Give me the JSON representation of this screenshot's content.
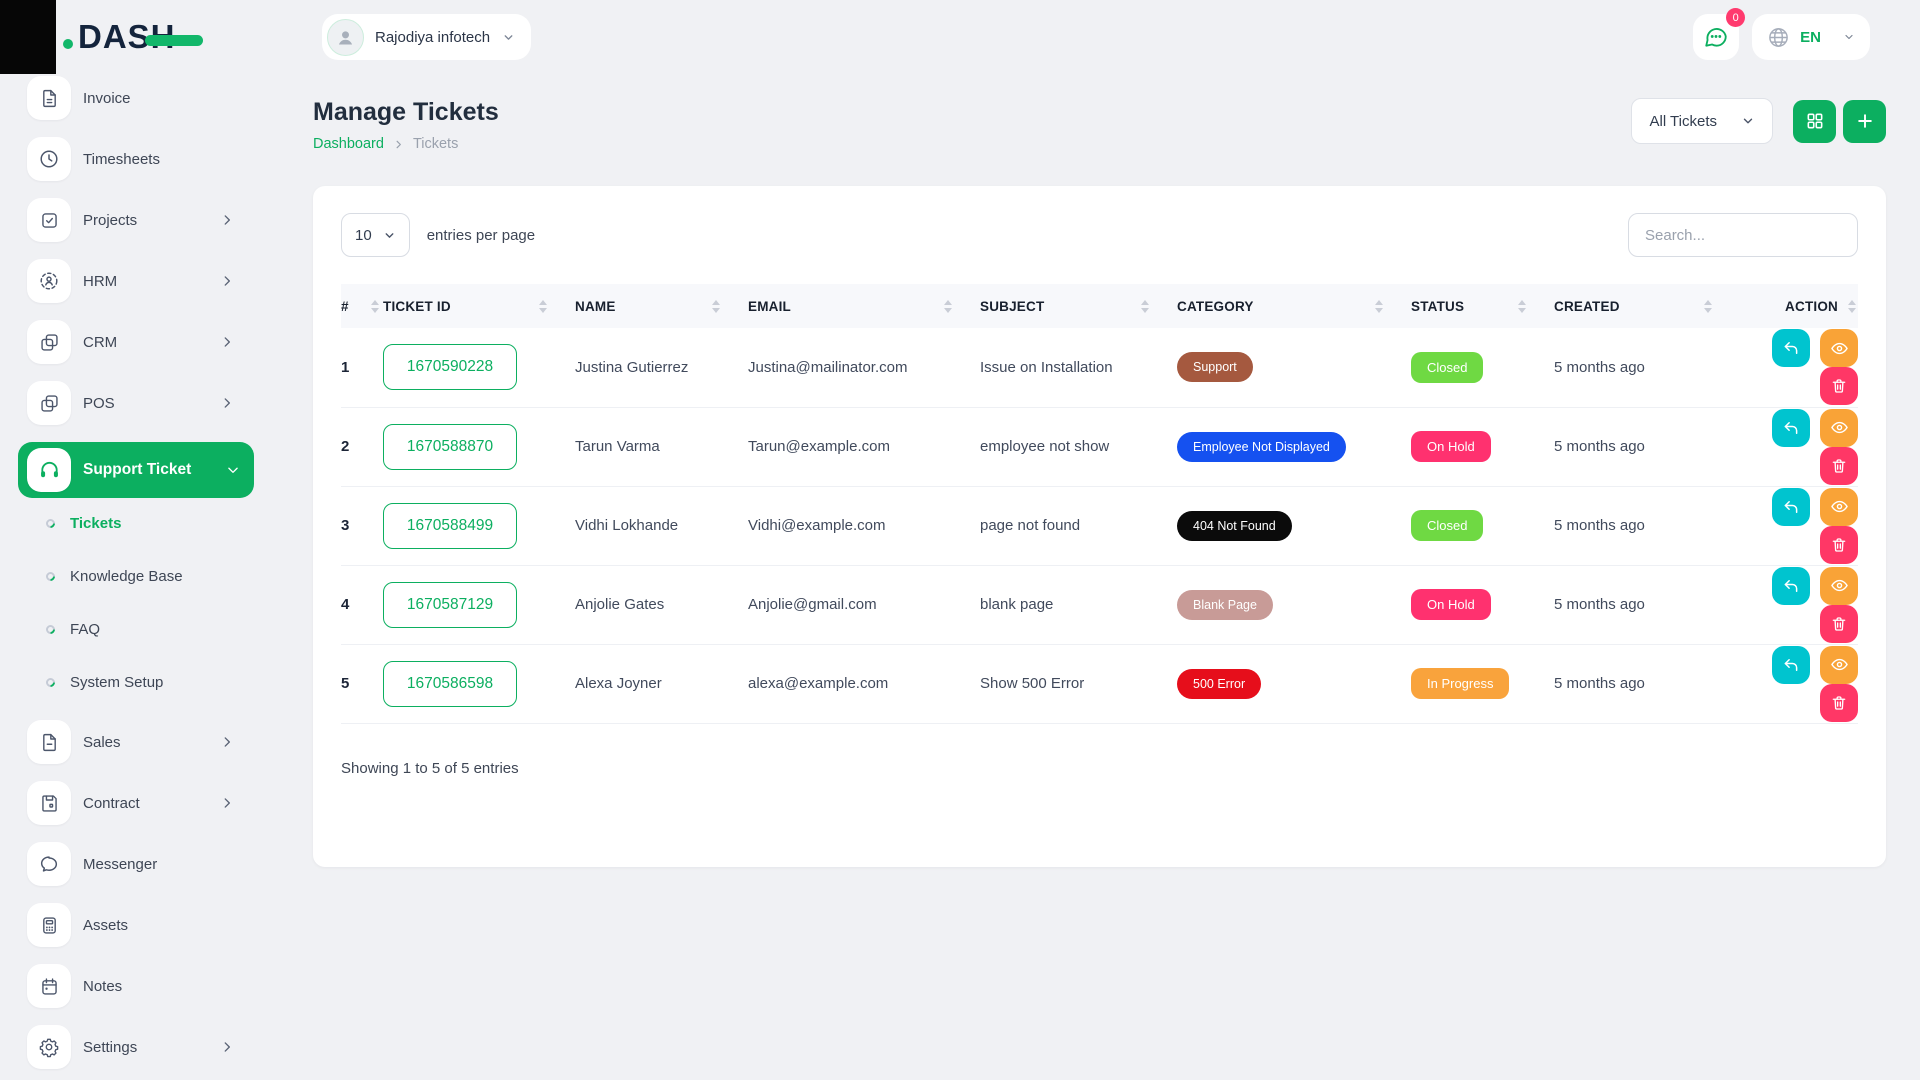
{
  "brand": {
    "logo_text": "DASH"
  },
  "topbar": {
    "company_name": "Rajodiya infotech",
    "messages_badge": "0",
    "language_code": "EN"
  },
  "page": {
    "title": "Manage Tickets",
    "breadcrumb_home": "Dashboard",
    "breadcrumb_current": "Tickets",
    "filter_button_label": "All Tickets"
  },
  "sidebar": {
    "items": [
      {
        "label": "Invoice",
        "icon": "invoice-icon",
        "expandable": false
      },
      {
        "label": "Timesheets",
        "icon": "timesheets-icon",
        "expandable": false
      },
      {
        "label": "Projects",
        "icon": "projects-icon",
        "expandable": true
      },
      {
        "label": "HRM",
        "icon": "hrm-icon",
        "expandable": true
      },
      {
        "label": "CRM",
        "icon": "crm-icon",
        "expandable": true
      },
      {
        "label": "POS",
        "icon": "pos-icon",
        "expandable": true
      },
      {
        "label": "Support Ticket",
        "icon": "support-ticket-icon",
        "expandable": true,
        "active": true,
        "expanded": true,
        "children": [
          {
            "label": "Tickets",
            "active": true
          },
          {
            "label": "Knowledge Base",
            "active": false
          },
          {
            "label": "FAQ",
            "active": false
          },
          {
            "label": "System Setup",
            "active": false
          }
        ]
      },
      {
        "label": "Sales",
        "icon": "sales-icon",
        "expandable": true
      },
      {
        "label": "Contract",
        "icon": "contract-icon",
        "expandable": true
      },
      {
        "label": "Messenger",
        "icon": "messenger-icon",
        "expandable": false
      },
      {
        "label": "Assets",
        "icon": "assets-icon",
        "expandable": false
      },
      {
        "label": "Notes",
        "icon": "notes-icon",
        "expandable": false
      },
      {
        "label": "Settings",
        "icon": "settings-icon",
        "expandable": true
      }
    ]
  },
  "table": {
    "entries_value": "10",
    "entries_label": "entries per page",
    "search_placeholder": "Search...",
    "columns": [
      "#",
      "TICKET ID",
      "NAME",
      "EMAIL",
      "SUBJECT",
      "CATEGORY",
      "STATUS",
      "CREATED",
      "ACTION"
    ],
    "rows": [
      {
        "index": "1",
        "ticket_id": "1670590228",
        "name": "Justina Gutierrez",
        "email": "Justina@mailinator.com",
        "subject": "Issue on Installation",
        "category": {
          "label": "Support",
          "color": "#a5593f"
        },
        "status": {
          "label": "Closed",
          "color": "#6fd943"
        },
        "created": "5 months ago"
      },
      {
        "index": "2",
        "ticket_id": "1670588870",
        "name": "Tarun Varma",
        "email": "Tarun@example.com",
        "subject": "employee not show",
        "category": {
          "label": "Employee Not Displayed",
          "color": "#1551f0"
        },
        "status": {
          "label": "On Hold",
          "color": "#ff316f"
        },
        "created": "5 months ago"
      },
      {
        "index": "3",
        "ticket_id": "1670588499",
        "name": "Vidhi Lokhande",
        "email": "Vidhi@example.com",
        "subject": "page not found",
        "category": {
          "label": "404 Not Found",
          "color": "#0b0b0b"
        },
        "status": {
          "label": "Closed",
          "color": "#6fd943"
        },
        "created": "5 months ago"
      },
      {
        "index": "4",
        "ticket_id": "1670587129",
        "name": "Anjolie Gates",
        "email": "Anjolie@gmail.com",
        "subject": "blank page",
        "category": {
          "label": "Blank Page",
          "color": "#c89b97"
        },
        "status": {
          "label": "On Hold",
          "color": "#ff316f"
        },
        "created": "5 months ago"
      },
      {
        "index": "5",
        "ticket_id": "1670586598",
        "name": "Alexa Joyner",
        "email": "alexa@example.com",
        "subject": "Show 500 Error",
        "category": {
          "label": "500 Error",
          "color": "#e60e1b"
        },
        "status": {
          "label": "In Progress",
          "color": "#f9a33c"
        },
        "created": "5 months ago"
      }
    ],
    "actions": [
      {
        "name": "reply",
        "color": "#00c4cf"
      },
      {
        "name": "view",
        "color": "#f9a337"
      },
      {
        "name": "delete",
        "color": "#ff3766"
      }
    ],
    "footer_text": "Showing 1 to 5 of 5 entries"
  },
  "colors": {
    "primary_green": "#0caf60",
    "status_closed": "#6fd943",
    "status_on_hold": "#ff316f",
    "status_in_progress": "#f9a33c"
  }
}
